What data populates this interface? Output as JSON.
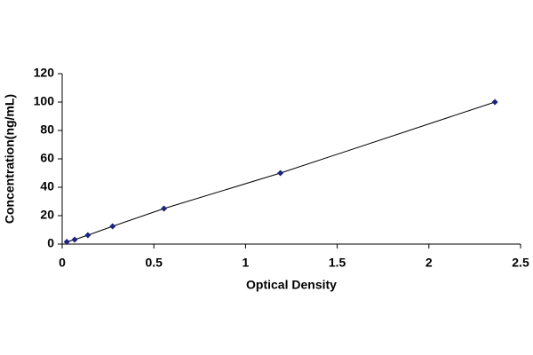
{
  "chart_data": {
    "type": "line",
    "x_label": "Optical Density",
    "y_label": "Concentration(ng/mL)",
    "x": [
      0.025,
      0.068,
      0.14,
      0.275,
      0.555,
      1.19,
      2.36
    ],
    "values": [
      1.56,
      3.12,
      6.25,
      12.5,
      25,
      50,
      100
    ],
    "line_color": "#000000",
    "marker_color": "#1a237e",
    "xlim": [
      0,
      2.5
    ],
    "xticks": [
      0,
      0.5,
      1,
      1.5,
      2,
      2.5
    ],
    "ylim": [
      0,
      120
    ],
    "yticks": [
      0,
      20,
      40,
      60,
      80,
      100,
      120
    ],
    "grid": false
  }
}
